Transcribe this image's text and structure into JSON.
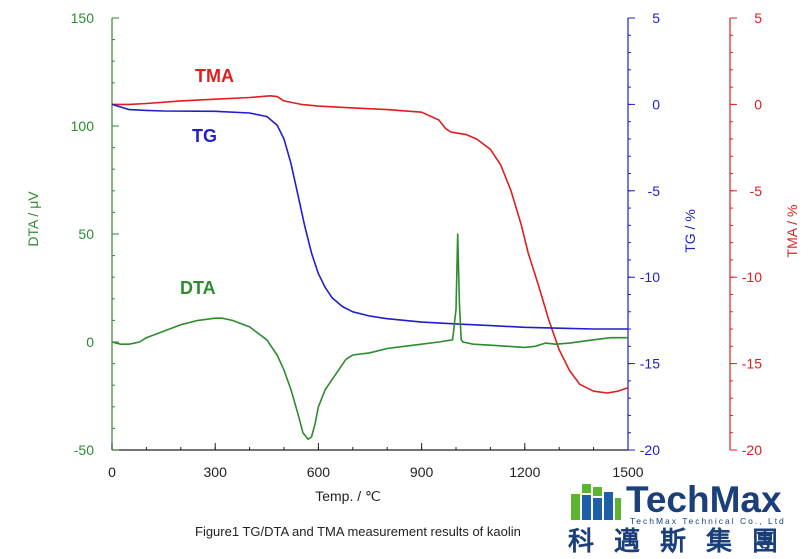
{
  "chart_data": {
    "type": "line",
    "xlabel": "Temp. / ℃",
    "xlim": [
      0,
      1500
    ],
    "x_ticks": [
      "0",
      "300",
      "600",
      "900",
      "1200",
      "1500"
    ],
    "axes": {
      "dta": {
        "label": "DTA / μV",
        "lim": [
          -50,
          150
        ],
        "ticks": [
          "-50",
          "0",
          "50",
          "100",
          "150"
        ],
        "color": "#2e8b2e"
      },
      "tg": {
        "label": "TG / %",
        "lim": [
          -20,
          5
        ],
        "ticks": [
          "-20",
          "-15",
          "-10",
          "-5",
          "0",
          "5"
        ],
        "color": "#1f1fcc"
      },
      "tma": {
        "label": "TMA / %",
        "lim": [
          -20,
          5
        ],
        "ticks": [
          "-20",
          "-15",
          "-10",
          "-5",
          "0",
          "5"
        ],
        "color": "#dd1f1f"
      }
    },
    "series": [
      {
        "name": "TMA",
        "axis": "tma",
        "color": "#dd1f1f",
        "x": [
          0,
          50,
          100,
          200,
          300,
          400,
          460,
          480,
          500,
          550,
          600,
          700,
          800,
          900,
          950,
          970,
          985,
          1000,
          1030,
          1060,
          1100,
          1130,
          1160,
          1190,
          1210,
          1240,
          1270,
          1300,
          1330,
          1360,
          1400,
          1440,
          1470,
          1500
        ],
        "y": [
          0,
          0,
          0.05,
          0.2,
          0.3,
          0.4,
          0.5,
          0.45,
          0.2,
          0,
          -0.1,
          -0.2,
          -0.3,
          -0.45,
          -0.9,
          -1.4,
          -1.6,
          -1.65,
          -1.75,
          -2,
          -2.6,
          -3.5,
          -5,
          -7,
          -8.6,
          -10.5,
          -12.5,
          -14.2,
          -15.4,
          -16.2,
          -16.6,
          -16.7,
          -16.6,
          -16.4
        ]
      },
      {
        "name": "TG",
        "axis": "tg",
        "color": "#1f1fcc",
        "x": [
          0,
          25,
          50,
          100,
          150,
          300,
          400,
          450,
          480,
          500,
          520,
          540,
          560,
          580,
          600,
          620,
          640,
          670,
          700,
          750,
          800,
          900,
          1000,
          1100,
          1200,
          1300,
          1400,
          1500
        ],
        "y": [
          0,
          -0.15,
          -0.3,
          -0.35,
          -0.38,
          -0.4,
          -0.5,
          -0.7,
          -1.2,
          -2,
          -3.4,
          -5.2,
          -7,
          -8.6,
          -9.8,
          -10.6,
          -11.2,
          -11.7,
          -12,
          -12.25,
          -12.4,
          -12.6,
          -12.7,
          -12.8,
          -12.9,
          -12.95,
          -13,
          -13
        ]
      },
      {
        "name": "DTA",
        "axis": "dta",
        "color": "#2e8b2e",
        "x": [
          0,
          25,
          50,
          80,
          100,
          150,
          200,
          250,
          300,
          320,
          350,
          400,
          450,
          480,
          500,
          520,
          540,
          555,
          570,
          580,
          590,
          600,
          620,
          650,
          680,
          700,
          750,
          800,
          850,
          900,
          950,
          990,
          1000,
          1005,
          1010,
          1015,
          1020,
          1050,
          1100,
          1150,
          1200,
          1230,
          1260,
          1290,
          1330,
          1400,
          1450,
          1500
        ],
        "y": [
          0,
          -1,
          -1,
          0,
          2,
          5,
          8,
          10,
          11,
          11,
          10,
          7,
          1,
          -6,
          -13,
          -22,
          -33,
          -42,
          -45,
          -44,
          -38,
          -30,
          -22,
          -15,
          -8,
          -6,
          -5,
          -3,
          -2,
          -1,
          0,
          1,
          15,
          50,
          18,
          1,
          0,
          -1,
          -1.5,
          -2,
          -2.5,
          -2,
          -0.5,
          -1,
          -0.5,
          1,
          2,
          2
        ]
      }
    ],
    "annotations": [
      "TMA",
      "TG",
      "DTA"
    ],
    "caption": "Figure1 TG/DTA and TMA measurement results of kaolin"
  },
  "logo": {
    "name": "TechMax",
    "subtitle": "TechMax Technical Co., Ltd",
    "chinese": "科邁斯集團",
    "colors": {
      "primary": "#1a3f7a",
      "green": "#5cb531",
      "blue": "#1d5fa8"
    }
  }
}
